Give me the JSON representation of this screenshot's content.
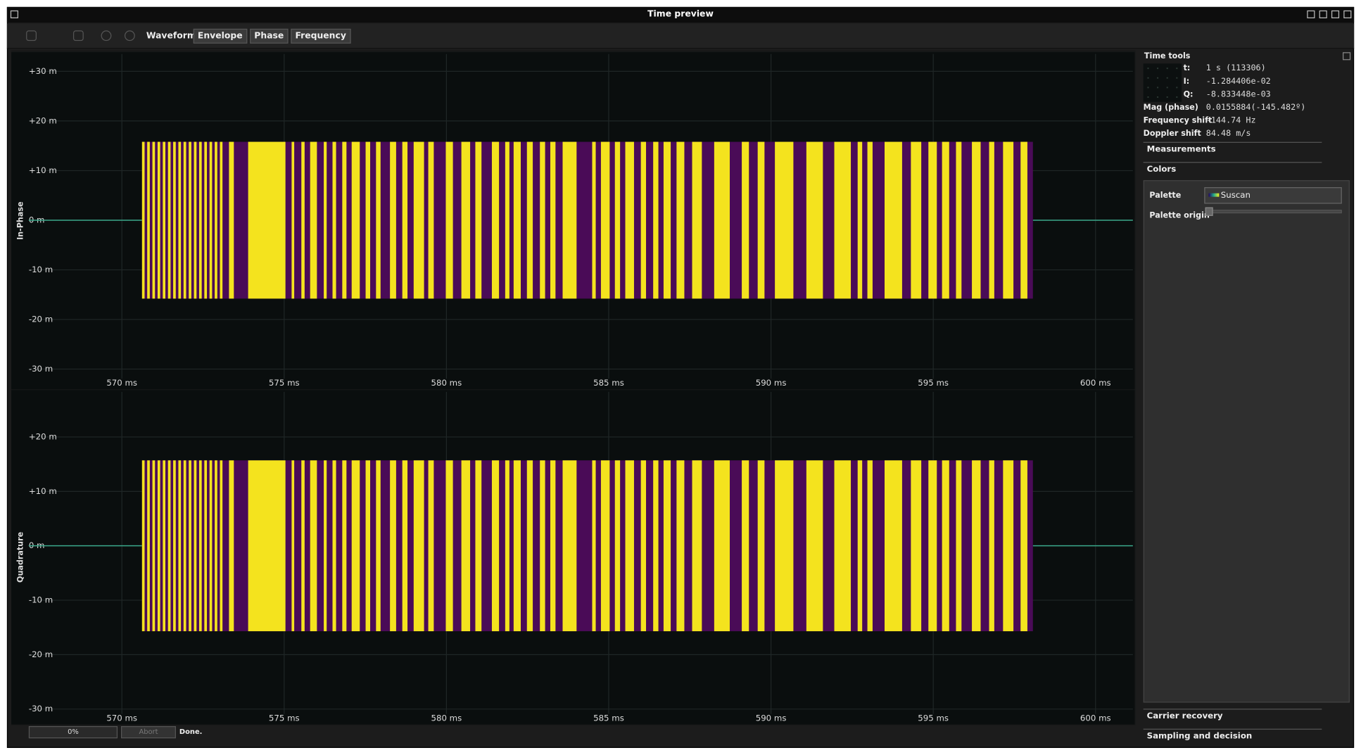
{
  "window": {
    "title": "Time preview"
  },
  "toolbar": {
    "label": "Waveform",
    "buttons": [
      "Envelope",
      "Phase",
      "Frequency"
    ]
  },
  "chart_data": [
    {
      "type": "waveform",
      "ylabel": "In-Phase",
      "xlim": [
        567.13,
        601.15
      ],
      "xticks": [
        {
          "value": 570,
          "label": "570 ms"
        },
        {
          "value": 575,
          "label": "575 ms"
        },
        {
          "value": 580,
          "label": "580 ms"
        },
        {
          "value": 585,
          "label": "585 ms"
        },
        {
          "value": 590,
          "label": "590 ms"
        },
        {
          "value": 595,
          "label": "595 ms"
        },
        {
          "value": 600,
          "label": "600 ms"
        }
      ],
      "ylim": [
        -0.0337,
        0.0335
      ],
      "yticks": [
        {
          "value": -0.03,
          "label": "-30 m"
        },
        {
          "value": -0.02,
          "label": "-20 m"
        },
        {
          "value": -0.01,
          "label": "-10 m"
        },
        {
          "value": 0,
          "label": "0 m"
        },
        {
          "value": 0.01,
          "label": "+10 m"
        },
        {
          "value": 0.02,
          "label": "+20 m"
        },
        {
          "value": 0.03,
          "label": "+30 m"
        }
      ],
      "grid": true,
      "colors": {
        "burst": "#4a0b57",
        "segment": "#f4e31e",
        "trace": "#3aa88a"
      },
      "burst_xlim": [
        570.62,
        598.07
      ],
      "burst_amplitude": 0.0158,
      "segments": [
        [
          570.62,
          570.7
        ],
        [
          570.78,
          570.86
        ],
        [
          570.94,
          571.02
        ],
        [
          571.1,
          571.18
        ],
        [
          571.26,
          571.34
        ],
        [
          571.42,
          571.5
        ],
        [
          571.58,
          571.66
        ],
        [
          571.74,
          571.82
        ],
        [
          571.9,
          571.98
        ],
        [
          572.06,
          572.14
        ],
        [
          572.22,
          572.3
        ],
        [
          572.38,
          572.46
        ],
        [
          572.54,
          572.62
        ],
        [
          572.7,
          572.78
        ],
        [
          572.86,
          572.94
        ],
        [
          573.02,
          573.1
        ],
        [
          573.3,
          573.45
        ],
        [
          573.89,
          575.04
        ],
        [
          575.23,
          575.31
        ],
        [
          575.53,
          575.63
        ],
        [
          575.8,
          576.01
        ],
        [
          576.22,
          576.31
        ],
        [
          576.49,
          576.6
        ],
        [
          576.79,
          576.92
        ],
        [
          577.08,
          577.33
        ],
        [
          577.51,
          577.65
        ],
        [
          577.83,
          577.97
        ],
        [
          578.26,
          578.45
        ],
        [
          578.64,
          578.8
        ],
        [
          578.99,
          579.31
        ],
        [
          579.44,
          579.61
        ],
        [
          579.98,
          580.2
        ],
        [
          580.46,
          580.73
        ],
        [
          580.89,
          581.08
        ],
        [
          581.4,
          581.62
        ],
        [
          581.81,
          581.94
        ],
        [
          582.07,
          582.29
        ],
        [
          582.48,
          582.66
        ],
        [
          582.88,
          583.04
        ],
        [
          583.2,
          583.36
        ],
        [
          583.58,
          584.01
        ],
        [
          584.49,
          584.6
        ],
        [
          584.76,
          585.03
        ],
        [
          585.19,
          585.35
        ],
        [
          585.51,
          585.78
        ],
        [
          585.99,
          586.15
        ],
        [
          586.37,
          586.53
        ],
        [
          586.69,
          586.91
        ],
        [
          587.09,
          587.33
        ],
        [
          587.57,
          587.87
        ],
        [
          588.25,
          588.73
        ],
        [
          589.1,
          589.32
        ],
        [
          589.59,
          589.8
        ],
        [
          590.12,
          590.69
        ],
        [
          591.09,
          591.6
        ],
        [
          591.95,
          592.46
        ],
        [
          592.67,
          592.81
        ],
        [
          592.97,
          593.13
        ],
        [
          593.5,
          594.04
        ],
        [
          594.31,
          594.63
        ],
        [
          594.85,
          595.11
        ],
        [
          595.27,
          595.49
        ],
        [
          595.7,
          595.87
        ],
        [
          596.19,
          596.46
        ],
        [
          596.72,
          596.88
        ],
        [
          597.15,
          597.47
        ],
        [
          597.69,
          597.9
        ]
      ]
    },
    {
      "type": "waveform",
      "ylabel": "Quadrature",
      "xlim": [
        567.13,
        601.15
      ],
      "xticks": [
        {
          "value": 570,
          "label": "570 ms"
        },
        {
          "value": 575,
          "label": "575 ms"
        },
        {
          "value": 580,
          "label": "580 ms"
        },
        {
          "value": 585,
          "label": "585 ms"
        },
        {
          "value": 590,
          "label": "590 ms"
        },
        {
          "value": 595,
          "label": "595 ms"
        },
        {
          "value": 600,
          "label": "600 ms"
        }
      ],
      "ylim": [
        -0.0325,
        0.0283
      ],
      "yticks": [
        {
          "value": -0.03,
          "label": "-30 m"
        },
        {
          "value": -0.02,
          "label": "-20 m"
        },
        {
          "value": -0.01,
          "label": "-10 m"
        },
        {
          "value": 0,
          "label": "0 m"
        },
        {
          "value": 0.01,
          "label": "+10 m"
        },
        {
          "value": 0.02,
          "label": "+20 m"
        }
      ],
      "grid": true,
      "colors": {
        "burst": "#4a0b57",
        "segment": "#f4e31e",
        "trace": "#3aa88a"
      },
      "burst_xlim": [
        570.62,
        598.07
      ],
      "burst_amplitude": 0.0157,
      "segments": [
        [
          570.62,
          570.7
        ],
        [
          570.78,
          570.86
        ],
        [
          570.94,
          571.02
        ],
        [
          571.1,
          571.18
        ],
        [
          571.26,
          571.34
        ],
        [
          571.42,
          571.5
        ],
        [
          571.58,
          571.66
        ],
        [
          571.74,
          571.82
        ],
        [
          571.9,
          571.98
        ],
        [
          572.06,
          572.14
        ],
        [
          572.22,
          572.3
        ],
        [
          572.38,
          572.46
        ],
        [
          572.54,
          572.62
        ],
        [
          572.7,
          572.78
        ],
        [
          572.86,
          572.94
        ],
        [
          573.02,
          573.1
        ],
        [
          573.3,
          573.45
        ],
        [
          573.89,
          575.04
        ],
        [
          575.23,
          575.31
        ],
        [
          575.53,
          575.63
        ],
        [
          575.8,
          576.01
        ],
        [
          576.22,
          576.31
        ],
        [
          576.49,
          576.6
        ],
        [
          576.79,
          576.92
        ],
        [
          577.08,
          577.33
        ],
        [
          577.51,
          577.65
        ],
        [
          577.83,
          577.97
        ],
        [
          578.26,
          578.45
        ],
        [
          578.64,
          578.8
        ],
        [
          578.99,
          579.31
        ],
        [
          579.44,
          579.61
        ],
        [
          579.98,
          580.2
        ],
        [
          580.46,
          580.73
        ],
        [
          580.89,
          581.08
        ],
        [
          581.4,
          581.62
        ],
        [
          581.81,
          581.94
        ],
        [
          582.07,
          582.29
        ],
        [
          582.48,
          582.66
        ],
        [
          582.88,
          583.04
        ],
        [
          583.2,
          583.36
        ],
        [
          583.58,
          584.01
        ],
        [
          584.49,
          584.6
        ],
        [
          584.76,
          585.03
        ],
        [
          585.19,
          585.35
        ],
        [
          585.51,
          585.78
        ],
        [
          585.99,
          586.15
        ],
        [
          586.37,
          586.53
        ],
        [
          586.69,
          586.91
        ],
        [
          587.09,
          587.33
        ],
        [
          587.57,
          587.87
        ],
        [
          588.25,
          588.73
        ],
        [
          589.1,
          589.32
        ],
        [
          589.59,
          589.8
        ],
        [
          590.12,
          590.69
        ],
        [
          591.09,
          591.6
        ],
        [
          591.95,
          592.46
        ],
        [
          592.67,
          592.81
        ],
        [
          592.97,
          593.13
        ],
        [
          593.5,
          594.04
        ],
        [
          594.31,
          594.63
        ],
        [
          594.85,
          595.11
        ],
        [
          595.27,
          595.49
        ],
        [
          595.7,
          595.87
        ],
        [
          596.19,
          596.46
        ],
        [
          596.72,
          596.88
        ],
        [
          597.15,
          597.47
        ],
        [
          597.69,
          597.9
        ]
      ]
    }
  ],
  "status": {
    "progress": "0%",
    "abort": "Abort",
    "message": "Done."
  },
  "panel": {
    "title": "Time tools",
    "readouts": [
      {
        "label": "t:",
        "value": "1 s (113306)"
      },
      {
        "label": "I:",
        "value": "-1.284406e-02"
      },
      {
        "label": "Q:",
        "value": "-8.833448e-03"
      },
      {
        "label": "Mag (phase)",
        "value": "0.0155884(-145.482º)"
      },
      {
        "label": "Frequency shift",
        "value": "-144.74 Hz"
      },
      {
        "label": "Doppler shift",
        "value": "84.48 m/s"
      }
    ],
    "sections": [
      "Measurements",
      "Colors"
    ],
    "palette_label": "Palette",
    "palette_value": "Suscan",
    "palette_origin_label": "Palette origin",
    "bottom_sections": [
      "Carrier recovery",
      "Sampling and decision"
    ]
  }
}
